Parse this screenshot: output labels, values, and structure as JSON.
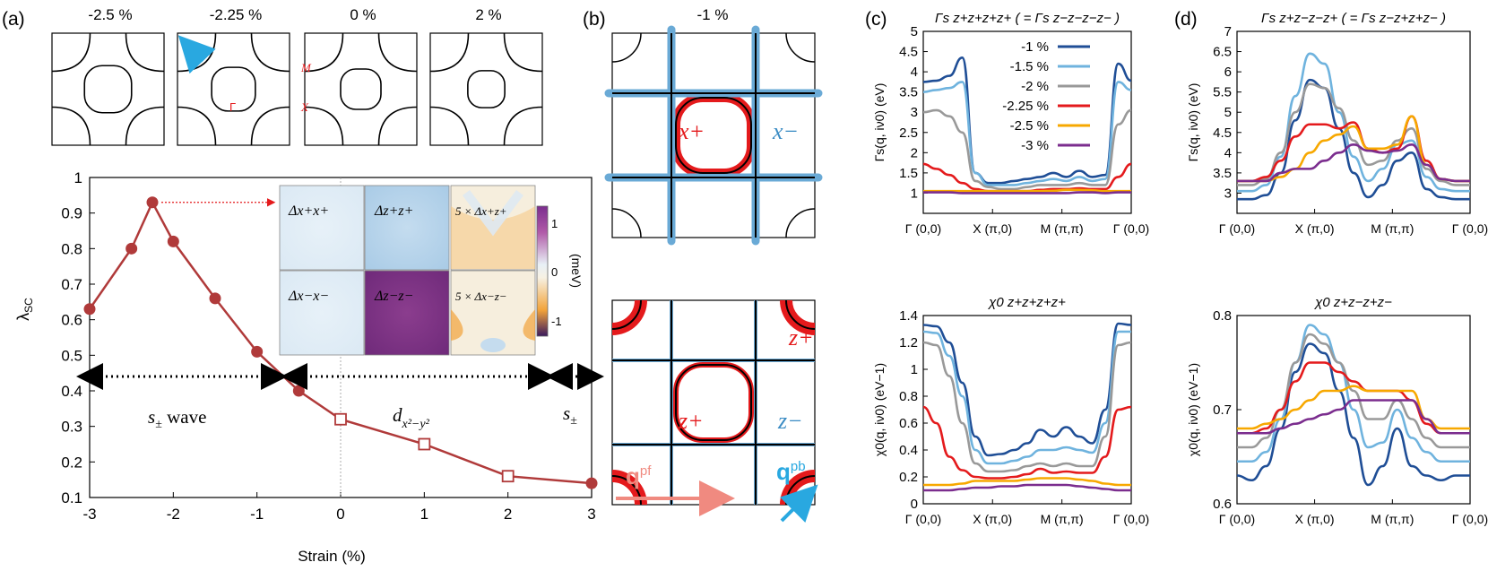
{
  "panel_labels": [
    "(a)",
    "(b)",
    "(c)",
    "(d)"
  ],
  "colors": {
    "curve_red": "#b03a3a",
    "fermi_black": "#000000",
    "band_x_minus": "#6aaad6",
    "band_x_plus": "#e41a1c",
    "arrow_blue": "#29a8e0",
    "q_pf_arrow": "#f08a80",
    "series": [
      "#1f4e96",
      "#6fb3de",
      "#999999",
      "#e41a1c",
      "#f7a800",
      "#7b2d8e"
    ]
  },
  "fermi_top": {
    "strain_labels": [
      "-2.5 %",
      "-2.25 %",
      "0 %",
      "2 %"
    ],
    "point_labels": {
      "M": "M",
      "Gamma": "Γ",
      "X": "X"
    }
  },
  "panel_a_chart": {
    "ylabel": "λ",
    "ylabel_sub": "SC",
    "xlabel": "Strain (%)",
    "phase_labels": {
      "s_wave": "s",
      "s_wave_sub": "±",
      "s_wave_suffix": " wave",
      "d_wave": "d",
      "d_wave_sub": "x²−y²",
      "s_right": "s",
      "s_right_sub": "±"
    },
    "gap_maps": {
      "labels": [
        "Δx+x+",
        "Δz+z+",
        "5 × Δx+z+",
        "Δx−x−",
        "Δz−z−",
        "5 × Δx−z−"
      ],
      "colorbar_ticks": [
        "1",
        "0",
        "-1"
      ],
      "colorbar_unit": "(meV)"
    }
  },
  "fermi_b": {
    "title": "-1 %",
    "labels": {
      "x_plus": "x+",
      "x_minus": "x−",
      "z_plus": "z+",
      "z_plus_2": "z+",
      "z_minus": "z−",
      "q_pf": "q",
      "q_pf_sup": "pf",
      "q_pb": "q",
      "q_pb_sup": "pb"
    }
  },
  "chart_data": [
    {
      "type": "line",
      "id": "a",
      "title": "",
      "xlabel": "Strain (%)",
      "ylabel": "λSC",
      "xlim": [
        -3,
        3
      ],
      "ylim": [
        0.1,
        1.0
      ],
      "xticks": [
        -3,
        -2,
        -1,
        0,
        1,
        2,
        3
      ],
      "yticks": [
        0.1,
        0.2,
        0.3,
        0.4,
        0.5,
        0.6,
        0.7,
        0.8,
        0.9,
        1.0
      ],
      "ytick_labels": [
        "0.1",
        "0.2",
        "0.3",
        "0.4",
        "0.5",
        "0.6",
        "0.7",
        "0.8",
        "0.9",
        "1"
      ],
      "series": [
        {
          "name": "λSC",
          "x": [
            -3,
            -2.5,
            -2.25,
            -2,
            -1.5,
            -1,
            -0.5,
            0,
            1,
            2,
            3
          ],
          "y": [
            0.63,
            0.8,
            0.93,
            0.82,
            0.66,
            0.51,
            0.4,
            0.32,
            0.25,
            0.16,
            0.14
          ],
          "markers": [
            "filled",
            "filled",
            "filled",
            "filled",
            "filled",
            "filled",
            "filled",
            "open",
            "open",
            "open",
            "filled"
          ]
        }
      ]
    },
    {
      "type": "line",
      "id": "c_top",
      "title": "Γs z+z+z+z+ ( = Γs z−z−z−z− )",
      "ylabel": "Γs(q, iν0) (eV)",
      "xticks": [
        "Γ (0,0)",
        "X (π,0)",
        "M (π,π)",
        "Γ (0,0)"
      ],
      "ylim": [
        0.5,
        5
      ],
      "yticks": [
        "1",
        "1.5",
        "2",
        "2.5",
        "3",
        "3.5",
        "4",
        "4.5",
        "5"
      ],
      "series": [
        {
          "name": "-1 %",
          "y": [
            3.75,
            3.78,
            3.9,
            4.35,
            1.5,
            1.25,
            1.25,
            1.3,
            1.35,
            1.4,
            1.5,
            1.4,
            1.55,
            1.4,
            1.45,
            4.2,
            3.78
          ]
        },
        {
          "name": "-1.5 %",
          "y": [
            3.5,
            3.55,
            3.6,
            3.75,
            1.5,
            1.2,
            1.2,
            1.2,
            1.25,
            1.3,
            1.35,
            1.3,
            1.4,
            1.3,
            1.35,
            3.75,
            3.55
          ]
        },
        {
          "name": "-2 %",
          "y": [
            3.0,
            3.05,
            2.9,
            2.5,
            1.3,
            1.15,
            1.1,
            1.1,
            1.15,
            1.2,
            1.2,
            1.2,
            1.25,
            1.2,
            1.2,
            2.7,
            3.05
          ]
        },
        {
          "name": "-2.25 %",
          "y": [
            1.72,
            1.6,
            1.45,
            1.25,
            1.1,
            1.05,
            1.05,
            1.05,
            1.05,
            1.08,
            1.1,
            1.1,
            1.12,
            1.1,
            1.1,
            1.4,
            1.72
          ]
        },
        {
          "name": "-2.5 %",
          "y": [
            1.05,
            1.05,
            1.05,
            1.05,
            1.05,
            1.05,
            1.05,
            1.05,
            1.05,
            1.05,
            1.06,
            1.08,
            1.08,
            1.07,
            1.05,
            1.05,
            1.05
          ]
        },
        {
          "name": "-3 %",
          "y": [
            1.02,
            1.02,
            1.02,
            1.0,
            1.0,
            1.0,
            1.0,
            1.0,
            1.0,
            1.0,
            1.0,
            1.0,
            1.02,
            1.02,
            1.0,
            1.02,
            1.02
          ]
        }
      ]
    },
    {
      "type": "line",
      "id": "d_top",
      "title": "Γs z+z−z−z+ ( = Γs z−z+z+z− )",
      "ylabel": "Γs(q, iν0) (eV)",
      "xticks": [
        "Γ (0,0)",
        "X (π,0)",
        "M (π,π)",
        "Γ (0,0)"
      ],
      "ylim": [
        2.5,
        7
      ],
      "yticks": [
        "3",
        "3.5",
        "4",
        "4.5",
        "5",
        "5.5",
        "6",
        "6.5",
        "7"
      ],
      "series": [
        {
          "name": "-1 %",
          "y": [
            2.85,
            2.85,
            2.95,
            3.5,
            4.8,
            5.8,
            5.6,
            4.6,
            3.5,
            2.9,
            3.2,
            3.8,
            4.0,
            3.1,
            2.9,
            2.85,
            2.85
          ]
        },
        {
          "name": "-1.5 %",
          "y": [
            3.05,
            3.05,
            3.2,
            3.9,
            5.4,
            6.45,
            6.2,
            5.0,
            3.9,
            3.3,
            3.6,
            4.2,
            4.3,
            3.4,
            3.1,
            3.05,
            3.05
          ]
        },
        {
          "name": "-2 %",
          "y": [
            3.2,
            3.2,
            3.35,
            4.0,
            5.0,
            5.7,
            5.6,
            5.1,
            4.3,
            3.7,
            3.8,
            4.3,
            4.6,
            3.6,
            3.3,
            3.2,
            3.2
          ]
        },
        {
          "name": "-2.25 %",
          "y": [
            3.3,
            3.3,
            3.4,
            3.8,
            4.4,
            4.7,
            4.7,
            4.6,
            4.75,
            4.1,
            4.0,
            4.1,
            4.9,
            3.8,
            3.35,
            3.3,
            3.3
          ]
        },
        {
          "name": "-2.5 %",
          "y": [
            3.3,
            3.3,
            3.3,
            3.4,
            3.6,
            4.0,
            4.3,
            4.45,
            4.65,
            4.1,
            4.1,
            4.2,
            4.9,
            3.7,
            3.35,
            3.3,
            3.3
          ]
        },
        {
          "name": "-3 %",
          "y": [
            3.3,
            3.3,
            3.3,
            3.5,
            3.6,
            3.6,
            3.8,
            4.0,
            4.2,
            4.05,
            4.0,
            4.05,
            4.2,
            3.7,
            3.35,
            3.3,
            3.3
          ]
        }
      ]
    },
    {
      "type": "line",
      "id": "c_bottom",
      "title": "χ0 z+z+z+z+",
      "ylabel": "χ0(q, iν0) (eV−1)",
      "xticks": [
        "Γ (0,0)",
        "X (π,0)",
        "M (π,π)",
        "Γ (0,0)"
      ],
      "ylim": [
        0,
        1.4
      ],
      "yticks": [
        "0",
        "0.2",
        "0.4",
        "0.6",
        "0.8",
        "1",
        "1.2",
        "1.4"
      ],
      "series": [
        {
          "name": "-1 %",
          "y": [
            1.33,
            1.32,
            1.2,
            0.9,
            0.5,
            0.36,
            0.37,
            0.4,
            0.45,
            0.55,
            0.5,
            0.57,
            0.5,
            0.45,
            0.7,
            1.34,
            1.33
          ]
        },
        {
          "name": "-1.5 %",
          "y": [
            1.28,
            1.27,
            1.1,
            0.8,
            0.4,
            0.3,
            0.3,
            0.32,
            0.35,
            0.4,
            0.4,
            0.42,
            0.4,
            0.38,
            0.6,
            1.28,
            1.28
          ]
        },
        {
          "name": "-2 %",
          "y": [
            1.2,
            1.18,
            0.95,
            0.6,
            0.3,
            0.24,
            0.24,
            0.25,
            0.28,
            0.3,
            0.28,
            0.3,
            0.28,
            0.28,
            0.5,
            1.18,
            1.2
          ]
        },
        {
          "name": "-2.25 %",
          "y": [
            0.72,
            0.6,
            0.35,
            0.25,
            0.2,
            0.19,
            0.19,
            0.2,
            0.22,
            0.26,
            0.23,
            0.24,
            0.23,
            0.23,
            0.35,
            0.7,
            0.72
          ]
        },
        {
          "name": "-2.5 %",
          "y": [
            0.14,
            0.14,
            0.14,
            0.15,
            0.17,
            0.17,
            0.17,
            0.17,
            0.18,
            0.19,
            0.19,
            0.19,
            0.18,
            0.17,
            0.15,
            0.14,
            0.14
          ]
        },
        {
          "name": "-3 %",
          "y": [
            0.1,
            0.1,
            0.1,
            0.11,
            0.12,
            0.12,
            0.13,
            0.13,
            0.14,
            0.14,
            0.14,
            0.14,
            0.13,
            0.12,
            0.11,
            0.1,
            0.1
          ]
        }
      ]
    },
    {
      "type": "line",
      "id": "d_bottom",
      "title": "χ0 z+z−z+z−",
      "ylabel": "χ0(q, iν0) (eV−1)",
      "xticks": [
        "Γ (0,0)",
        "X (π,0)",
        "M (π,π)",
        "Γ (0,0)"
      ],
      "ylim": [
        0.6,
        0.8
      ],
      "yticks": [
        "0.6",
        "0.7",
        "0.8"
      ],
      "series": [
        {
          "name": "-1 %",
          "y": [
            0.63,
            0.625,
            0.64,
            0.68,
            0.74,
            0.77,
            0.76,
            0.72,
            0.67,
            0.62,
            0.64,
            0.68,
            0.64,
            0.63,
            0.625,
            0.63,
            0.63
          ]
        },
        {
          "name": "-1.5 %",
          "y": [
            0.645,
            0.645,
            0.655,
            0.69,
            0.75,
            0.79,
            0.78,
            0.75,
            0.7,
            0.66,
            0.665,
            0.7,
            0.67,
            0.655,
            0.645,
            0.645,
            0.645
          ]
        },
        {
          "name": "-2 %",
          "y": [
            0.66,
            0.66,
            0.67,
            0.7,
            0.75,
            0.78,
            0.77,
            0.75,
            0.72,
            0.69,
            0.69,
            0.71,
            0.69,
            0.67,
            0.66,
            0.66,
            0.66
          ]
        },
        {
          "name": "-2.25 %",
          "y": [
            0.675,
            0.675,
            0.68,
            0.7,
            0.73,
            0.75,
            0.75,
            0.74,
            0.73,
            0.72,
            0.72,
            0.72,
            0.71,
            0.685,
            0.675,
            0.675,
            0.675
          ]
        },
        {
          "name": "-2.5 %",
          "y": [
            0.68,
            0.68,
            0.685,
            0.69,
            0.7,
            0.71,
            0.72,
            0.72,
            0.725,
            0.72,
            0.72,
            0.72,
            0.72,
            0.69,
            0.68,
            0.68,
            0.68
          ]
        },
        {
          "name": "-3 %",
          "y": [
            0.675,
            0.675,
            0.675,
            0.68,
            0.685,
            0.69,
            0.695,
            0.7,
            0.71,
            0.71,
            0.71,
            0.71,
            0.71,
            0.69,
            0.675,
            0.675,
            0.675
          ]
        }
      ]
    }
  ]
}
